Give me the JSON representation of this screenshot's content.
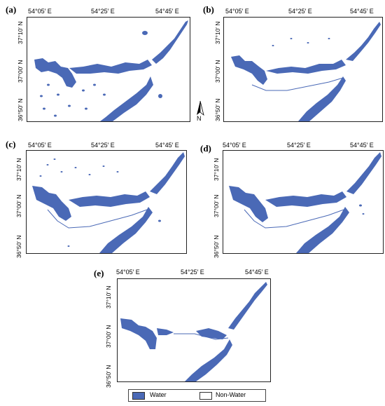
{
  "panels": [
    {
      "id": "a",
      "label": "(a)"
    },
    {
      "id": "b",
      "label": "(b)"
    },
    {
      "id": "c",
      "label": "(c)"
    },
    {
      "id": "d",
      "label": "(d)"
    },
    {
      "id": "e",
      "label": "(e)"
    }
  ],
  "lon_ticks": [
    "54°05′ E",
    "54°25′ E",
    "54°45′ E"
  ],
  "lat_ticks": [
    "37°10′ N",
    "37°00′ N",
    "36°50′ N"
  ],
  "north_arrow_label": "N",
  "legend": {
    "items": [
      {
        "label": "Water",
        "color": "#4a69b6"
      },
      {
        "label": "Non-Water",
        "color": "#ffffff"
      }
    ]
  },
  "colors": {
    "water": "#4a69b6",
    "frame": "#222222"
  }
}
